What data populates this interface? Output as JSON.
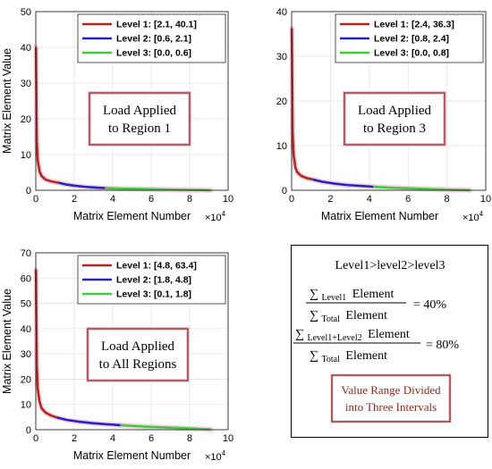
{
  "chart_data": [
    {
      "type": "line",
      "ylabel": "Matrix Element Value",
      "xlabel": "Matrix Element Number",
      "x_exponent_label": "×10",
      "x_exponent_power": "4",
      "xlim": [
        0,
        10
      ],
      "ylim": [
        0,
        50
      ],
      "xticks": [
        "0",
        "2",
        "4",
        "6",
        "8",
        "10"
      ],
      "yticks": [
        "0",
        "10",
        "20",
        "30",
        "40",
        "50"
      ],
      "grid": true,
      "legend_position": "top-right",
      "annotation": [
        "Load Applied",
        "to Region 1"
      ],
      "series": [
        {
          "name": "Level 1: [2.1, 40.1]",
          "color": "#b3261e",
          "x": [
            0.01,
            0.05,
            0.1,
            0.2,
            0.3,
            0.5,
            0.8,
            1.2
          ],
          "y": [
            40.1,
            14.0,
            8.5,
            5.2,
            4.0,
            3.0,
            2.5,
            2.1
          ]
        },
        {
          "name": "Level 2: [0.6, 2.1]",
          "color": "#2323c8",
          "x": [
            1.2,
            1.6,
            2.0,
            2.5,
            3.0,
            3.6
          ],
          "y": [
            2.1,
            1.6,
            1.3,
            1.0,
            0.8,
            0.6
          ]
        },
        {
          "name": "Level 3: [0.0, 0.6]",
          "color": "#3ccc3c",
          "x": [
            3.6,
            4.5,
            5.5,
            6.5,
            7.5,
            8.5,
            9.1
          ],
          "y": [
            0.6,
            0.45,
            0.35,
            0.25,
            0.15,
            0.07,
            0.0
          ]
        }
      ]
    },
    {
      "type": "line",
      "ylabel": "",
      "xlabel": "Matrix Element Number",
      "x_exponent_label": "×10",
      "x_exponent_power": "4",
      "xlim": [
        0,
        10
      ],
      "ylim": [
        0,
        40
      ],
      "xticks": [
        "0",
        "2",
        "4",
        "6",
        "8",
        "10"
      ],
      "yticks": [
        "0",
        "10",
        "20",
        "30",
        "40"
      ],
      "grid": true,
      "legend_position": "top-right",
      "annotation": [
        "Load Applied",
        "to Region 3"
      ],
      "series": [
        {
          "name": "Level 1: [2.4, 36.3]",
          "color": "#b3261e",
          "x": [
            0.01,
            0.05,
            0.1,
            0.2,
            0.3,
            0.5,
            0.8,
            1.1
          ],
          "y": [
            36.3,
            13.0,
            8.0,
            5.0,
            4.0,
            3.2,
            2.7,
            2.4
          ]
        },
        {
          "name": "Level 2: [0.8, 2.4]",
          "color": "#2323c8",
          "x": [
            1.1,
            1.6,
            2.2,
            2.8,
            3.5,
            4.2
          ],
          "y": [
            2.4,
            1.9,
            1.5,
            1.2,
            1.0,
            0.8
          ]
        },
        {
          "name": "Level 3: [0.0, 0.8]",
          "color": "#3ccc3c",
          "x": [
            4.2,
            5.0,
            6.0,
            7.0,
            8.0,
            9.0,
            9.2
          ],
          "y": [
            0.8,
            0.6,
            0.45,
            0.3,
            0.15,
            0.03,
            0.0
          ]
        }
      ]
    },
    {
      "type": "line",
      "ylabel": "Matrix Element Value",
      "xlabel": "Matrix Element Number",
      "x_exponent_label": "×10",
      "x_exponent_power": "4",
      "xlim": [
        0,
        10
      ],
      "ylim": [
        0,
        70
      ],
      "xticks": [
        "0",
        "2",
        "4",
        "6",
        "8",
        "10"
      ],
      "yticks": [
        "0",
        "10",
        "20",
        "30",
        "40",
        "50",
        "60",
        "70"
      ],
      "grid": true,
      "legend_position": "top-right",
      "annotation": [
        "Load Applied",
        "to All Regions"
      ],
      "series": [
        {
          "name": "Level 1: [4.8, 63.4]",
          "color": "#b3261e",
          "x": [
            0.01,
            0.05,
            0.1,
            0.2,
            0.3,
            0.5,
            0.8,
            1.1
          ],
          "y": [
            63.4,
            26.0,
            16.5,
            11.0,
            8.5,
            6.8,
            5.6,
            4.8
          ]
        },
        {
          "name": "Level 2: [1.8, 4.8]",
          "color": "#2323c8",
          "x": [
            1.1,
            1.6,
            2.2,
            2.9,
            3.6,
            4.4
          ],
          "y": [
            4.8,
            3.9,
            3.2,
            2.6,
            2.2,
            1.8
          ]
        },
        {
          "name": "Level 3: [0.1, 1.8]",
          "color": "#3ccc3c",
          "x": [
            4.4,
            5.2,
            6.0,
            7.0,
            8.0,
            8.8,
            9.1
          ],
          "y": [
            1.8,
            1.4,
            1.1,
            0.8,
            0.5,
            0.2,
            0.1
          ]
        }
      ]
    }
  ],
  "summary": {
    "heading": "Level1>level2>level3",
    "sigma": "∑",
    "element": "Element",
    "sub_level1": "Level1",
    "sub_level12": "Level1+Level2",
    "sub_total": "Total",
    "eq1_rhs": "= 40%",
    "eq2_rhs": "= 80%",
    "note": [
      "Value Range Divided",
      "into Three Intervals"
    ]
  }
}
